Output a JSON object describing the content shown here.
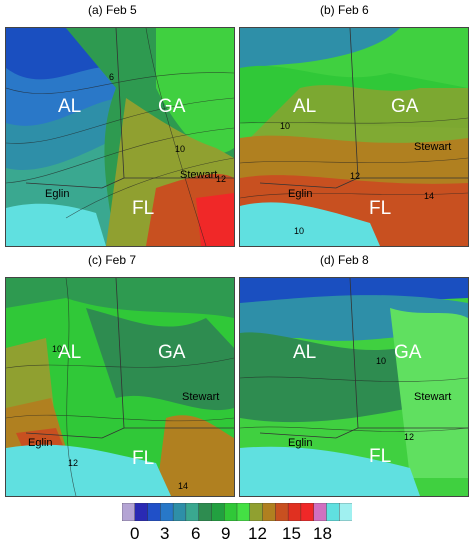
{
  "panels": [
    {
      "title": "(a) Feb 5",
      "states": {
        "al": "AL",
        "ga": "GA",
        "fl": "FL"
      },
      "sites": {
        "stewart": "Stewart",
        "eglin": "Eglin"
      },
      "contours": [
        "6",
        "10",
        "12"
      ]
    },
    {
      "title": "(b) Feb 6",
      "states": {
        "al": "AL",
        "ga": "GA",
        "fl": "FL"
      },
      "sites": {
        "stewart": "Stewart",
        "eglin": "Eglin"
      },
      "contours": [
        "10",
        "12",
        "14",
        "10"
      ]
    },
    {
      "title": "(c) Feb 7",
      "states": {
        "al": "AL",
        "ga": "GA",
        "fl": "FL"
      },
      "sites": {
        "stewart": "Stewart",
        "eglin": "Eglin"
      },
      "contours": [
        "10",
        "12",
        "14"
      ]
    },
    {
      "title": "(d) Feb 8",
      "states": {
        "al": "AL",
        "ga": "GA",
        "fl": "FL"
      },
      "sites": {
        "stewart": "Stewart",
        "eglin": "Eglin"
      },
      "contours": [
        "10",
        "12"
      ]
    }
  ],
  "colorbar": {
    "labels": [
      "0",
      "3",
      "6",
      "9",
      "12",
      "15",
      "18"
    ],
    "colors": [
      "#b4a4d4",
      "#2a2ab4",
      "#2050c8",
      "#2878c8",
      "#2e8fa8",
      "#3aa890",
      "#2e8c50",
      "#22a040",
      "#30c838",
      "#44e044",
      "#90a030",
      "#b08020",
      "#c85020",
      "#e03020",
      "#f02828",
      "#d070c0",
      "#60e0e0",
      "#a0f0f0"
    ]
  }
}
